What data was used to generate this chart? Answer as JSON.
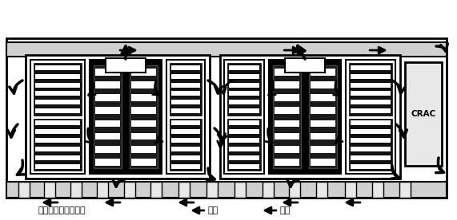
{
  "fig_width": 5.71,
  "fig_height": 2.76,
  "dpi": 100,
  "bg_color": "#ffffff",
  "crac_label": "CRAC",
  "caption_text": "热通道封闭示意图：",
  "cold_wind": "冷风",
  "hot_wind": "热风"
}
